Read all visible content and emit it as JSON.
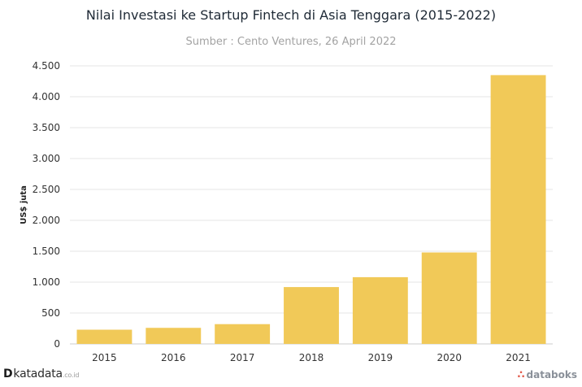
{
  "header": {
    "title": "Nilai Investasi ke Startup Fintech di Asia Tenggara (2015-2022)",
    "subtitle": "Sumber : Cento Ventures, 26 April 2022"
  },
  "footer": {
    "left_brand_mark": "D",
    "left_brand_name": "katadata",
    "left_brand_suffix": ".co.id",
    "right_brand_icon": "databoks-logo-icon",
    "right_brand_name": "databoks"
  },
  "colors": {
    "bar": "#f1c958",
    "grid": "#e6e6e6",
    "axis": "#cccccc",
    "tick_text": "#333333"
  },
  "chart_data": {
    "type": "bar",
    "title": "Nilai Investasi ke Startup Fintech di Asia Tenggara (2015-2022)",
    "subtitle": "Sumber : Cento Ventures, 26 April 2022",
    "xlabel": "",
    "ylabel": "US$ juta",
    "categories": [
      "2015",
      "2016",
      "2017",
      "2018",
      "2019",
      "2020",
      "2021"
    ],
    "values": [
      230,
      260,
      320,
      920,
      1080,
      1480,
      4350
    ],
    "ylim": [
      0,
      4500
    ],
    "yticks": [
      0,
      500,
      1000,
      1500,
      2000,
      2500,
      3000,
      3500,
      4000,
      4500
    ],
    "ytick_labels": [
      "0",
      "500",
      "1.000",
      "1.500",
      "2.000",
      "2.500",
      "3.000",
      "3.500",
      "4.000",
      "4.500"
    ],
    "grid": true,
    "legend": "none"
  }
}
